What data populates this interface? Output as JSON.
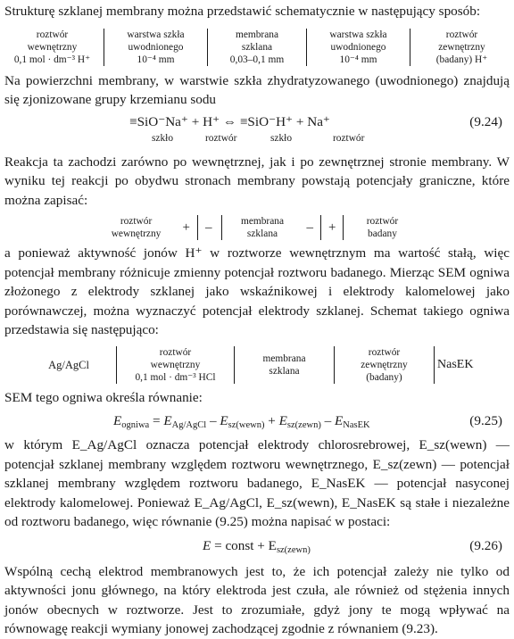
{
  "intro": "Strukturę szklanej membrany można przedstawić schematycznie w następujący sposób:",
  "scheme1": {
    "c1": [
      "roztwór",
      "wewnętrzny",
      "0,1 mol · dm⁻³ H⁺"
    ],
    "c2": [
      "warstwa szkła",
      "uwodnionego",
      "10⁻⁴ mm"
    ],
    "c3": [
      "membrana",
      "szklana",
      "0,03–0,1 mm"
    ],
    "c4": [
      "warstwa szkła",
      "uwodnionego",
      "10⁻⁴ mm"
    ],
    "c5": [
      "roztwór",
      "zewnętrzny",
      "(badany) H⁺"
    ]
  },
  "para1": "Na powierzchni membrany, w warstwie szkła zhydratyzowanego (uwodnionego) znajdują się zjonizowane grupy krzemianu sodu",
  "eq924": {
    "text": "≡SiO⁻Na⁺ + H⁺ ⇔ ≡SiO⁻H⁺ + Na⁺",
    "num": "(9.24)",
    "labels": [
      "szkło",
      "roztwór",
      "szkło",
      "roztwór"
    ]
  },
  "para2": "Reakcja ta zachodzi zarówno po wewnętrznej, jak i po zewnętrznej stronie membrany. W wyniku tej reakcji po obydwu stronach membrany powstają potencjały graniczne, które można zapisać:",
  "scheme2": {
    "left": [
      "roztwór",
      "wewnętrzny"
    ],
    "signs": [
      "+",
      "–",
      "–",
      "+"
    ],
    "mid": [
      "membrana",
      "szklana"
    ],
    "right": [
      "roztwór",
      "badany"
    ]
  },
  "para3": "a ponieważ aktywność jonów H⁺ w roztworze wewnętrznym ma wartość stałą, więc potencjał membrany różnicuje zmienny potencjał roztworu badanego. Mierząc SEM ogniwa złożonego z elektrody szklanej jako wskaźnikowej i elektrody kalomelowej jako porównawczej, można wyznaczyć potencjał elektrody szklanej. Schemat takiego ogniwa przedstawia się następująco:",
  "scheme3": {
    "c1": "Ag/AgCl",
    "c2": [
      "roztwór",
      "wewnętrzny",
      "0,1 mol · dm⁻³ HCl"
    ],
    "c3": [
      "membrana",
      "szklana"
    ],
    "c4": [
      "roztwór",
      "zewnętrzny",
      "(badany)"
    ],
    "c5": "NasEK"
  },
  "para4": "SEM tego ogniwa określa równanie:",
  "eq925": {
    "lhs": "E",
    "lhs_sub": "ogniwa",
    "terms": [
      {
        "sign": "=",
        "sub": "Ag/AgCl"
      },
      {
        "sign": "–",
        "sub": "sz(wewn)"
      },
      {
        "sign": "+",
        "sub": "sz(zewn)"
      },
      {
        "sign": "–",
        "sub": "NasEK"
      }
    ],
    "num": "(9.25)"
  },
  "para5": "w którym E_Ag/AgCl oznacza potencjał elektrody chlorosrebrowej, E_sz(wewn) — potencjał szklanej membrany względem roztworu wewnętrznego, E_sz(zewn) — potencjał szklanej membrany względem roztworu badanego, E_NasEK — potencjał nasyconej elektrody kalomelowej. Ponieważ E_Ag/AgCl, E_sz(wewn), E_NasEK są stałe i niezależne od roztworu badanego, więc równanie (9.25) można napisać w postaci:",
  "eq926": {
    "lhs": "E",
    "rhs": "= const + E",
    "rhs_sub": "sz(zewn)",
    "num": "(9.26)"
  },
  "para6": "Wspólną cechą elektrod membranowych jest to, że ich potencjał zależy nie tylko od aktywności jonu głównego, na który elektroda jest czuła, ale również od stężenia innych jonów obecnych w roztworze. Jest to zrozumiałe, gdyż jony te mogą wpływać na równowagę reakcji wymiany jonowej zachodzącej zgodnie z równaniem (9.23)."
}
